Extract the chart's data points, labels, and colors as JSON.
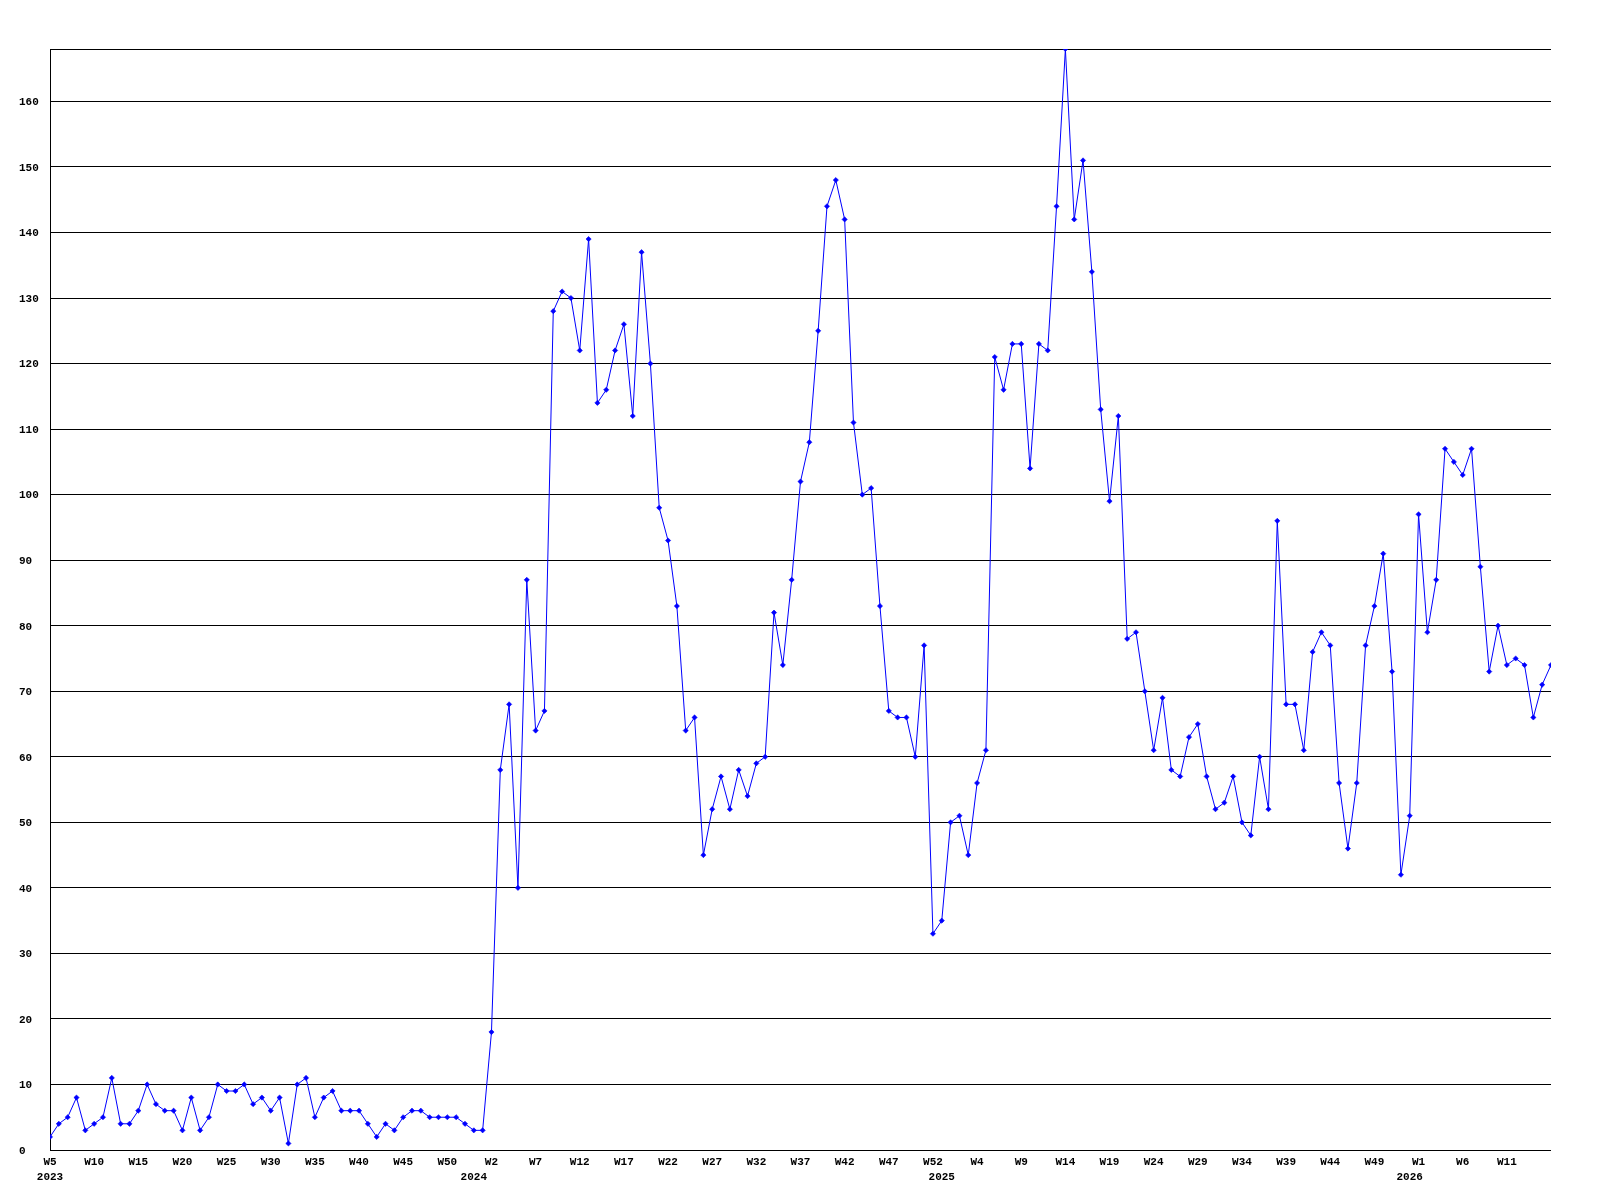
{
  "chart_data": {
    "type": "line",
    "categories": [
      "W5\n2023",
      null,
      null,
      null,
      null,
      "W10",
      null,
      null,
      null,
      null,
      "W15",
      null,
      null,
      null,
      null,
      "W20",
      null,
      null,
      null,
      null,
      "W25",
      null,
      null,
      null,
      null,
      "W30",
      null,
      null,
      null,
      null,
      "W35",
      null,
      null,
      null,
      null,
      "W40",
      null,
      null,
      null,
      null,
      "W45",
      null,
      null,
      null,
      null,
      "W50",
      null,
      null,
      "\n2024",
      null,
      "W2",
      null,
      null,
      null,
      null,
      "W7",
      null,
      null,
      null,
      null,
      "W12",
      null,
      null,
      null,
      null,
      "W17",
      null,
      null,
      null,
      null,
      "W22",
      null,
      null,
      null,
      null,
      "W27",
      null,
      null,
      null,
      null,
      "W32",
      null,
      null,
      null,
      null,
      "W37",
      null,
      null,
      null,
      null,
      "W42",
      null,
      null,
      null,
      null,
      "W47",
      null,
      null,
      null,
      null,
      "W52",
      "\n2025",
      null,
      null,
      null,
      "W4",
      null,
      null,
      null,
      null,
      "W9",
      null,
      null,
      null,
      null,
      "W14",
      null,
      null,
      null,
      null,
      "W19",
      null,
      null,
      null,
      null,
      "W24",
      null,
      null,
      null,
      null,
      "W29",
      null,
      null,
      null,
      null,
      "W34",
      null,
      null,
      null,
      null,
      "W39",
      null,
      null,
      null,
      null,
      "W44",
      null,
      null,
      null,
      null,
      "W49",
      null,
      null,
      null,
      "\n2026",
      "W1",
      null,
      null,
      null,
      null,
      "W6",
      null,
      null,
      null,
      null,
      "W11",
      null,
      null,
      null,
      null,
      null
    ],
    "series": [
      {
        "color": "#0000ff",
        "values": [
          2,
          4,
          5,
          8,
          3,
          4,
          5,
          11,
          4,
          4,
          6,
          10,
          7,
          6,
          6,
          3,
          8,
          3,
          5,
          10,
          9,
          9,
          10,
          7,
          8,
          6,
          8,
          1,
          10,
          11,
          5,
          8,
          9,
          6,
          6,
          6,
          4,
          2,
          4,
          3,
          5,
          6,
          6,
          5,
          5,
          5,
          5,
          4,
          3,
          3,
          18,
          58,
          68,
          40,
          87,
          64,
          67,
          128,
          131,
          130,
          122,
          139,
          114,
          116,
          122,
          126,
          112,
          137,
          120,
          98,
          93,
          83,
          64,
          66,
          45,
          52,
          57,
          52,
          58,
          54,
          59,
          60,
          82,
          74,
          87,
          102,
          108,
          125,
          144,
          148,
          142,
          111,
          100,
          101,
          83,
          67,
          66,
          66,
          60,
          77,
          33,
          35,
          50,
          51,
          45,
          56,
          61,
          121,
          116,
          123,
          123,
          104,
          123,
          122,
          144,
          168,
          142,
          151,
          134,
          113,
          99,
          112,
          78,
          79,
          70,
          61,
          69,
          58,
          57,
          63,
          65,
          57,
          52,
          53,
          57,
          50,
          48,
          60,
          52,
          96,
          68,
          68,
          61,
          76,
          79,
          77,
          56,
          46,
          56,
          77,
          83,
          91,
          73,
          42,
          51,
          97,
          79,
          87,
          107,
          105,
          103,
          107,
          89,
          73,
          80,
          74,
          75,
          74,
          66,
          71,
          74
        ]
      }
    ],
    "ylim": [
      0,
      168
    ],
    "yticks": [
      0,
      10,
      20,
      30,
      40,
      50,
      60,
      70,
      80,
      90,
      100,
      110,
      120,
      130,
      140,
      150,
      160
    ],
    "grid": "y",
    "marker": "diamond",
    "line_style": "solid"
  }
}
